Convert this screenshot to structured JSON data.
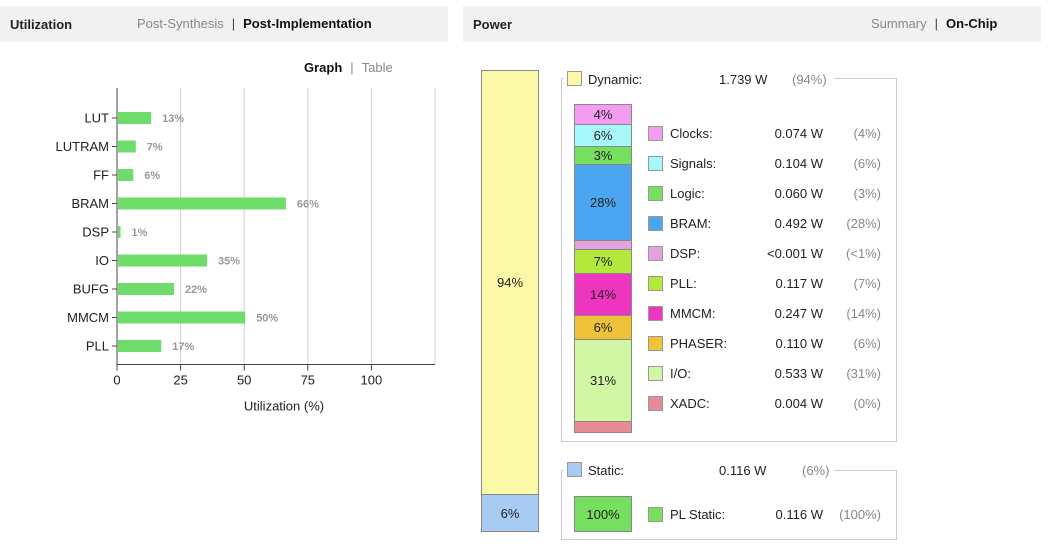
{
  "utilization": {
    "title": "Utilization",
    "tabs": [
      "Post-Synthesis",
      "Post-Implementation"
    ],
    "active_tab": "Post-Implementation",
    "view_tabs": [
      "Graph",
      "Table"
    ],
    "active_view": "Graph"
  },
  "chart_data": {
    "type": "bar",
    "orientation": "horizontal",
    "categories": [
      "LUT",
      "LUTRAM",
      "FF",
      "BRAM",
      "DSP",
      "IO",
      "BUFG",
      "MMCM",
      "PLL"
    ],
    "values": [
      13,
      7,
      6,
      66,
      1,
      35,
      22,
      50,
      17
    ],
    "value_labels": [
      "13%",
      "7%",
      "6%",
      "66%",
      "1%",
      "35%",
      "22%",
      "50%",
      "17%"
    ],
    "xlabel": "Utilization (%)",
    "xticks": [
      "0",
      "25",
      "50",
      "75",
      "100"
    ],
    "xlim": [
      0,
      125
    ],
    "grid": true,
    "bar_color": "#6ddc6a"
  },
  "power": {
    "title": "Power",
    "tabs": [
      "Summary",
      "On-Chip"
    ],
    "active_tab": "On-Chip",
    "total_column": {
      "dynamic_label": "94%",
      "static_label": "6%",
      "dynamic_color": "#fbf8a7",
      "static_color": "#a8cbf4"
    },
    "dynamic": {
      "label": "Dynamic:",
      "watts": "1.739 W",
      "pct": "(94%)",
      "color": "#fbf8a7"
    },
    "static": {
      "label": "Static:",
      "watts": "0.116 W",
      "pct": "(6%)",
      "color": "#a8cbf4"
    },
    "dynamic_items": [
      {
        "name": "Clocks:",
        "watts": "0.074 W",
        "pct": "(4%)",
        "color": "#f49cf0",
        "bar": "4%"
      },
      {
        "name": "Signals:",
        "watts": "0.104 W",
        "pct": "(6%)",
        "color": "#a6f7f9",
        "bar": "6%"
      },
      {
        "name": "Logic:",
        "watts": "0.060 W",
        "pct": "(3%)",
        "color": "#77df5f",
        "bar": "3%"
      },
      {
        "name": "BRAM:",
        "watts": "0.492 W",
        "pct": "(28%)",
        "color": "#4ca5f0",
        "bar": "28%"
      },
      {
        "name": "DSP:",
        "watts": "<0.001 W",
        "pct": "(<1%)",
        "color": "#e5a0de",
        "bar": ""
      },
      {
        "name": "PLL:",
        "watts": "0.117 W",
        "pct": "(7%)",
        "color": "#b2e93a",
        "bar": "7%"
      },
      {
        "name": "MMCM:",
        "watts": "0.247 W",
        "pct": "(14%)",
        "color": "#ee35c0",
        "bar": "14%"
      },
      {
        "name": "PHASER:",
        "watts": "0.110 W",
        "pct": "(6%)",
        "color": "#f0c23a",
        "bar": "6%"
      },
      {
        "name": "I/O:",
        "watts": "0.533 W",
        "pct": "(31%)",
        "color": "#d2f7a4",
        "bar": "31%"
      },
      {
        "name": "XADC:",
        "watts": "0.004 W",
        "pct": "(0%)",
        "color": "#e88b97",
        "bar": ""
      }
    ],
    "static_items": [
      {
        "name": "PL Static:",
        "watts": "0.116 W",
        "pct": "(100%)",
        "color": "#77df5f",
        "bar": "100%"
      }
    ]
  }
}
